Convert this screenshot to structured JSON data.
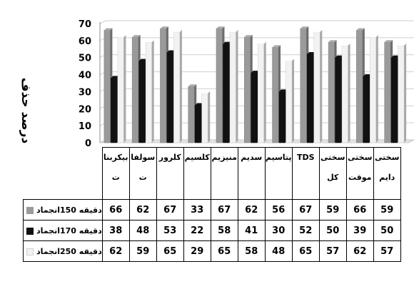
{
  "chart_data": {
    "type": "bar",
    "ylabel": "درصد حذف",
    "ylim": [
      0,
      70
    ],
    "yticks": [
      0,
      10,
      20,
      30,
      40,
      50,
      60,
      70
    ],
    "grid": true,
    "legend_placement": "data-table-left",
    "categories": [
      "سختی دایم",
      "سختی موقت",
      "سختی کل",
      "TDS",
      "پتاسیم",
      "سدیم",
      "منیزیم",
      "کلسیم",
      "کلرور",
      "سولفات",
      "بیکربنات"
    ],
    "category_labels_displayed": [
      "سختی دایم",
      "سختی موقت",
      "سختی کل",
      "TDS",
      "پتاسیم",
      "سدیم",
      "منیزیم",
      "کلسیم",
      "کلرور",
      "سولفا ت",
      "بیکربنا ت"
    ],
    "series": [
      {
        "name": "دقیقه 150انجماد",
        "color": "#9a9a9a",
        "values": [
          59,
          66,
          59,
          67,
          56,
          62,
          67,
          33,
          67,
          62,
          66
        ]
      },
      {
        "name": "دقیقه 170انجماد",
        "color": "#111111",
        "values": [
          50,
          39,
          50,
          52,
          30,
          41,
          58,
          22,
          53,
          48,
          38
        ]
      },
      {
        "name": "دقیقه 250انجماد",
        "color": "#f2f2f2",
        "values": [
          57,
          62,
          57,
          65,
          48,
          58,
          65,
          29,
          65,
          59,
          62
        ]
      }
    ]
  }
}
